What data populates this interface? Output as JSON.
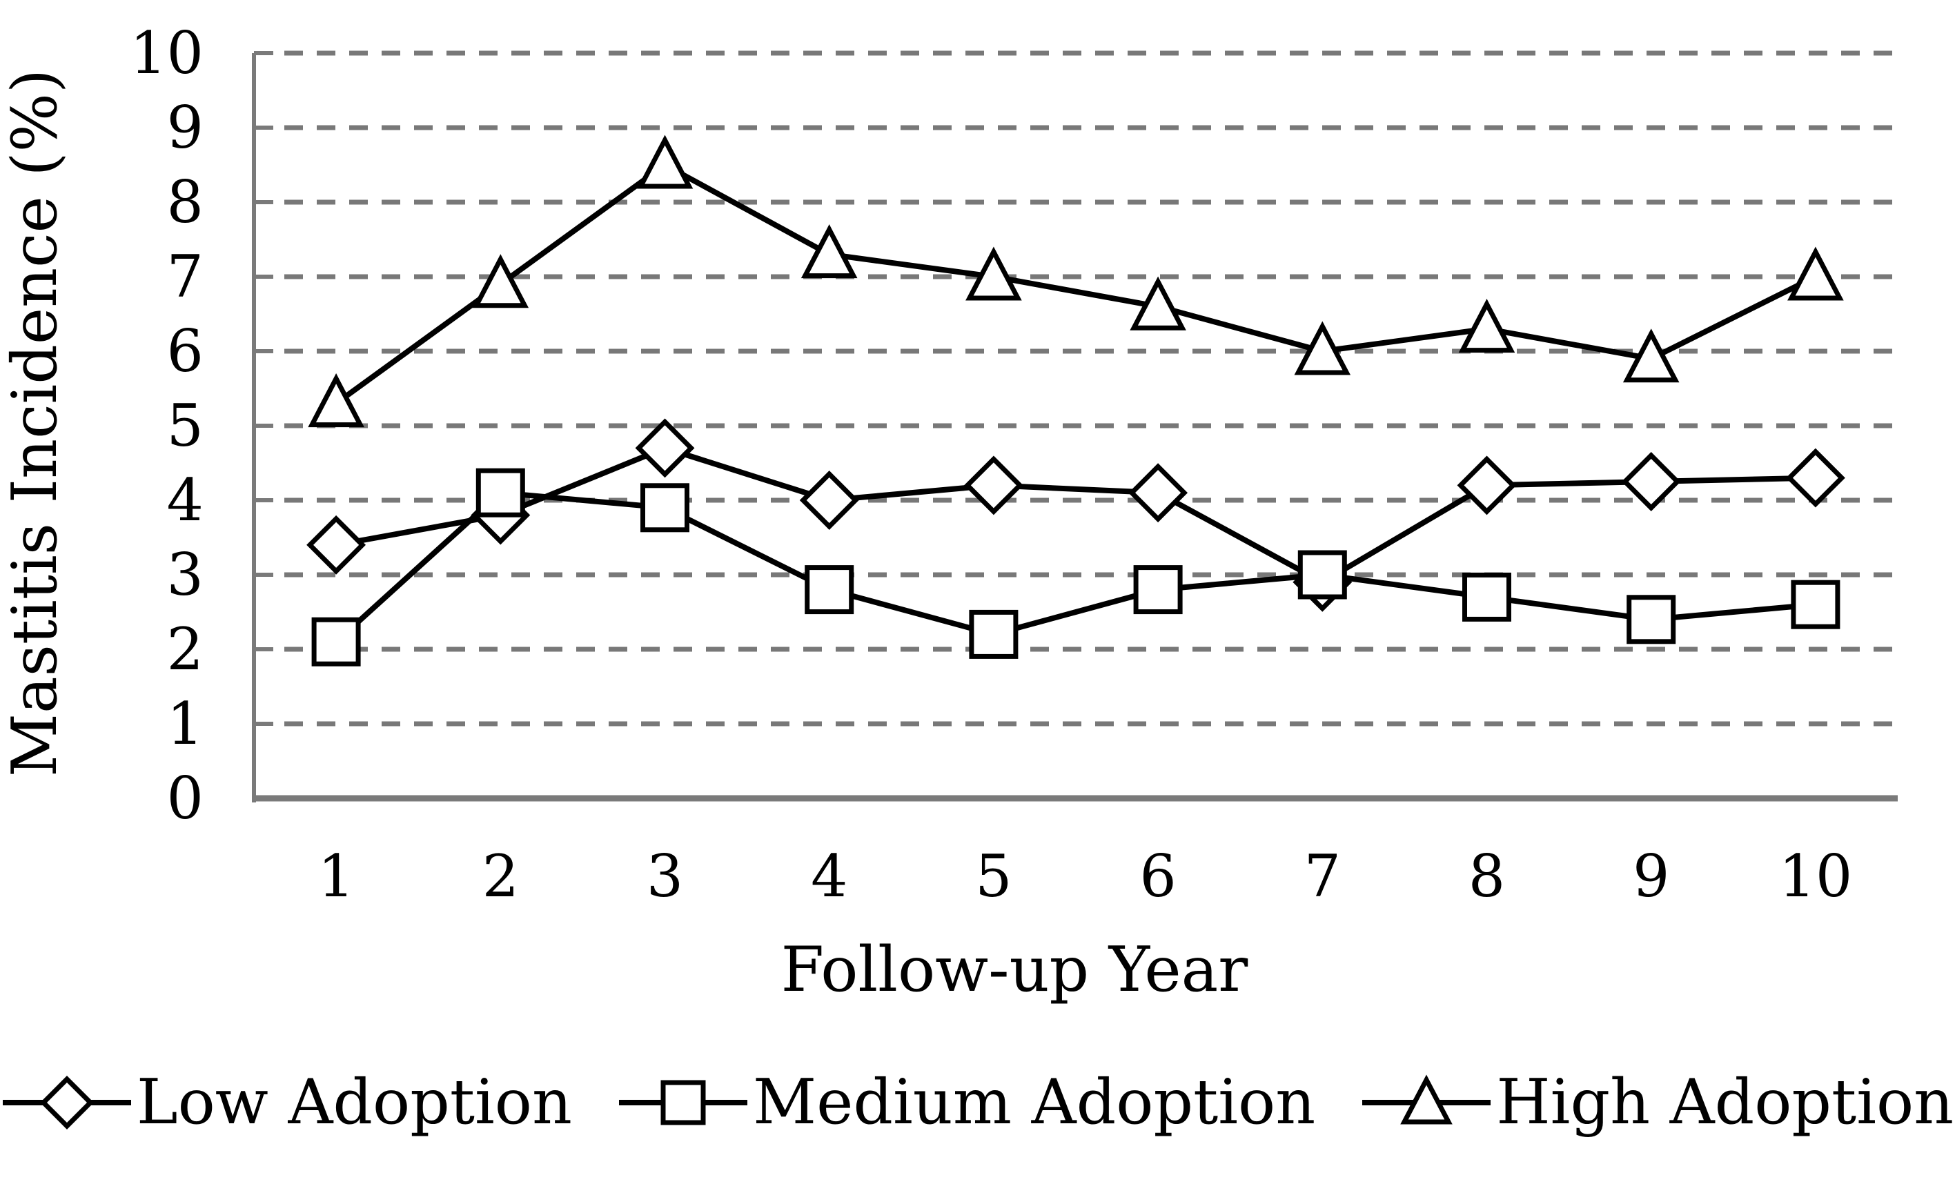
{
  "chart_data": {
    "type": "line",
    "title": "",
    "xlabel": "Follow-up Year",
    "ylabel": "Mastitis Incidence (%)",
    "x": [
      1,
      2,
      3,
      4,
      5,
      6,
      7,
      8,
      9,
      10
    ],
    "xtick_labels": [
      "1",
      "2",
      "3",
      "4",
      "5",
      "6",
      "7",
      "8",
      "9",
      "10"
    ],
    "ytick_labels": [
      "0",
      "1",
      "2",
      "3",
      "4",
      "5",
      "6",
      "7",
      "8",
      "9",
      "10"
    ],
    "ylim": [
      0,
      10
    ],
    "grid": {
      "horizontal": true,
      "style": "dashed",
      "color": "#787878"
    },
    "axis_color": "#7a7a7a",
    "series_color": "#000000",
    "marker_fill": "#ffffff",
    "legend_position": "bottom",
    "series": [
      {
        "name": "Low Adoption",
        "marker": "diamond",
        "values": [
          3.4,
          3.8,
          4.7,
          4.0,
          4.2,
          4.1,
          2.9,
          4.2,
          4.25,
          4.3
        ]
      },
      {
        "name": "Medium Adoption",
        "marker": "square",
        "values": [
          2.1,
          4.1,
          3.9,
          2.8,
          2.2,
          2.8,
          3.0,
          2.7,
          2.4,
          2.6
        ]
      },
      {
        "name": "High Adoption",
        "marker": "triangle",
        "values": [
          5.3,
          6.9,
          8.5,
          7.3,
          7.0,
          6.6,
          6.0,
          6.3,
          5.9,
          7.0
        ]
      }
    ]
  }
}
